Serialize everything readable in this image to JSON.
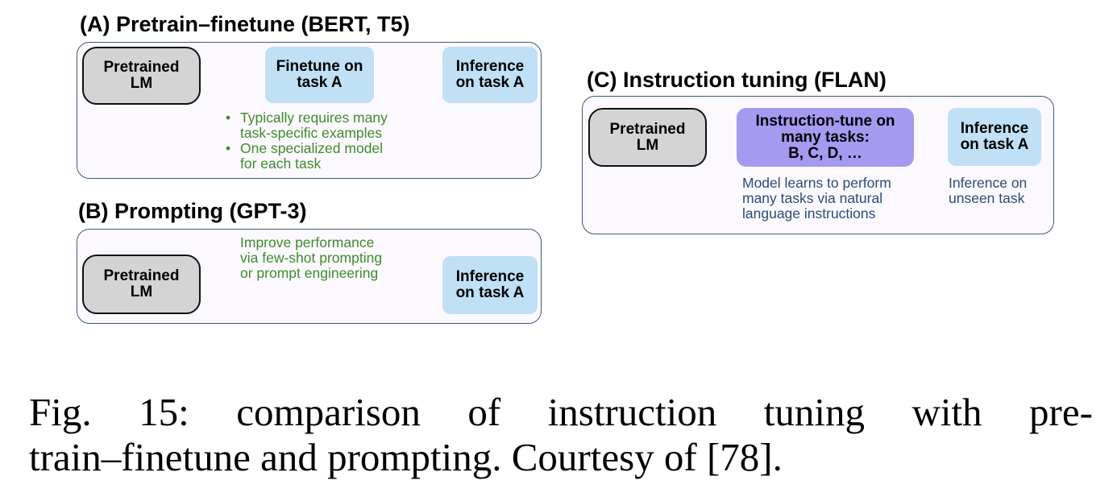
{
  "panel_a": {
    "title": "(A) Pretrain–finetune (BERT, T5)",
    "pretrained": "Pretrained\nLM",
    "finetune": "Finetune on\ntask A",
    "inference": "Inference\non task A",
    "bullets": [
      "Typically requires many\ntask-specific examples",
      "One specialized model\nfor each task"
    ]
  },
  "panel_b": {
    "title": "(B) Prompting (GPT-3)",
    "pretrained": "Pretrained\nLM",
    "note": "Improve performance\nvia few-shot prompting\nor prompt engineering",
    "inference": "Inference\non task A"
  },
  "panel_c": {
    "title": "(C) Instruction tuning (FLAN)",
    "pretrained": "Pretrained\nLM",
    "instruction": "Instruction-tune on\nmany tasks:\nB, C, D, …",
    "inference": "Inference\non task A",
    "note_left": "Model learns to perform\nmany tasks via natural\nlanguage instructions",
    "note_right": "Inference on\nunseen task"
  },
  "caption": {
    "line1_words": [
      "Fig.",
      "15:",
      "comparison",
      "of",
      "instruction",
      "tuning",
      "with",
      "pre-"
    ],
    "line2": "train–finetune and prompting. Courtesy of [78]."
  },
  "colors": {
    "panel_border": "#3c5a7a",
    "node_blue": "#bfe0f5",
    "node_purple": "#a59af0",
    "node_gray": "#d4d4d4",
    "green_text": "#3f8a2e",
    "navy_text": "#2c4b78"
  }
}
